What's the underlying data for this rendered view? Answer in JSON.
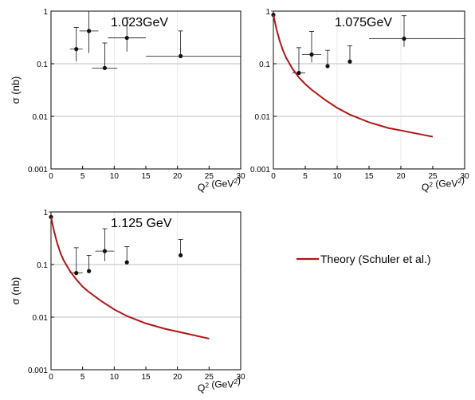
{
  "colors": {
    "theory": "#b01616",
    "grid": "#a8a8a8",
    "point": "#111111",
    "axis": "#000000"
  },
  "chart_data": [
    {
      "type": "scatter",
      "panel_label": "1.023GeV",
      "ylabel": "σ (nb)",
      "xlabel": "Q² (GeV²)",
      "xlim": [
        0,
        30
      ],
      "ylim": [
        0.001,
        1
      ],
      "yscale": "log",
      "grid": true,
      "x_ticks": [
        "0",
        "5",
        "10",
        "15",
        "20",
        "25",
        "30"
      ],
      "y_ticks": [
        "1",
        "0.1",
        "0.01",
        "0.001"
      ],
      "series": [
        {
          "points": [
            {
              "x": 4.0,
              "y": 0.19,
              "xerr": [
                1.0,
                1.0
              ],
              "yerr": [
                0.08,
                0.3
              ]
            },
            {
              "x": 6.0,
              "y": 0.42,
              "xerr": [
                1.5,
                1.5
              ],
              "yerr": [
                0.26,
                0.62
              ]
            },
            {
              "x": 8.5,
              "y": 0.083,
              "xerr": [
                2.0,
                2.0
              ],
              "yerr": [
                0.001,
                0.165
              ]
            },
            {
              "x": 12.0,
              "y": 0.31,
              "xerr": [
                3.0,
                3.0
              ],
              "yerr": [
                0.14,
                0.44
              ]
            },
            {
              "x": 20.5,
              "y": 0.14,
              "xerr": [
                5.5,
                12.0
              ],
              "yerr": [
                0.001,
                0.28
              ]
            }
          ]
        }
      ]
    },
    {
      "type": "scatter",
      "panel_label": "1.075GeV",
      "xlabel": "Q² (GeV²)",
      "xlim": [
        0,
        30
      ],
      "ylim": [
        0.001,
        1
      ],
      "yscale": "log",
      "grid": true,
      "x_ticks": [
        "0",
        "5",
        "10",
        "15",
        "20",
        "25",
        "30"
      ],
      "y_ticks": [
        "1",
        "0.1",
        "0.01",
        "0.001"
      ],
      "series": [
        {
          "points": [
            {
              "x": 0.0,
              "y": 0.85,
              "xerr": [
                0,
                0
              ],
              "yerr": [
                0.85,
                0.85
              ]
            },
            {
              "x": 4.0,
              "y": 0.067,
              "xerr": [
                1.0,
                1.0
              ],
              "yerr": [
                0.001,
                0.135
              ]
            },
            {
              "x": 6.0,
              "y": 0.15,
              "xerr": [
                1.5,
                1.5
              ],
              "yerr": [
                0.044,
                0.26
              ]
            },
            {
              "x": 8.5,
              "y": 0.09,
              "xerr": [
                0,
                0
              ],
              "yerr": [
                0.001,
                0.09
              ]
            },
            {
              "x": 12.0,
              "y": 0.11,
              "xerr": [
                0,
                0
              ],
              "yerr": [
                0.001,
                0.11
              ]
            },
            {
              "x": 20.5,
              "y": 0.3,
              "xerr": [
                5.5,
                12.0
              ],
              "yerr": [
                0.09,
                0.52
              ]
            }
          ]
        },
        {
          "name": "Theory (Schuler et al.)",
          "type": "line",
          "x": [
            0,
            0.5,
            1,
            1.5,
            2,
            3,
            4,
            5,
            6,
            8,
            10,
            12,
            15,
            18,
            21,
            25
          ],
          "y": [
            0.85,
            0.45,
            0.27,
            0.18,
            0.13,
            0.08,
            0.055,
            0.041,
            0.032,
            0.021,
            0.0145,
            0.0108,
            0.0077,
            0.006,
            0.0051,
            0.0041
          ]
        }
      ]
    },
    {
      "type": "scatter",
      "panel_label": "1.125 GeV",
      "ylabel": "σ (nb)",
      "xlabel": "Q² (GeV²)",
      "xlim": [
        0,
        30
      ],
      "ylim": [
        0.001,
        1
      ],
      "yscale": "log",
      "grid": true,
      "x_ticks": [
        "0",
        "5",
        "10",
        "15",
        "20",
        "25",
        "30"
      ],
      "y_ticks": [
        "1",
        "0.1",
        "0.01",
        "0.001"
      ],
      "series": [
        {
          "points": [
            {
              "x": 0.0,
              "y": 0.8,
              "xerr": [
                0,
                0
              ],
              "yerr": [
                0.8,
                0.8
              ]
            },
            {
              "x": 4.0,
              "y": 0.069,
              "xerr": [
                1.0,
                1.0
              ],
              "yerr": [
                0.001,
                0.14
              ]
            },
            {
              "x": 6.0,
              "y": 0.075,
              "xerr": [
                0,
                0
              ],
              "yerr": [
                0.001,
                0.075
              ]
            },
            {
              "x": 8.5,
              "y": 0.18,
              "xerr": [
                1.5,
                1.5
              ],
              "yerr": [
                0.064,
                0.3
              ]
            },
            {
              "x": 12.0,
              "y": 0.11,
              "xerr": [
                0,
                0
              ],
              "yerr": [
                0.001,
                0.11
              ]
            },
            {
              "x": 20.5,
              "y": 0.15,
              "xerr": [
                0,
                0
              ],
              "yerr": [
                0.001,
                0.15
              ]
            }
          ]
        },
        {
          "name": "Theory (Schuler et al.)",
          "type": "line",
          "x": [
            0,
            0.5,
            1,
            1.5,
            2,
            3,
            4,
            5,
            6,
            8,
            10,
            12,
            15,
            18,
            21,
            25
          ],
          "y": [
            0.8,
            0.42,
            0.25,
            0.165,
            0.12,
            0.075,
            0.052,
            0.038,
            0.03,
            0.02,
            0.014,
            0.0105,
            0.0076,
            0.006,
            0.005,
            0.0039
          ]
        }
      ]
    }
  ],
  "legend": {
    "label": "Theory (Schuler et al.)",
    "placement": "right of bottom panel"
  }
}
